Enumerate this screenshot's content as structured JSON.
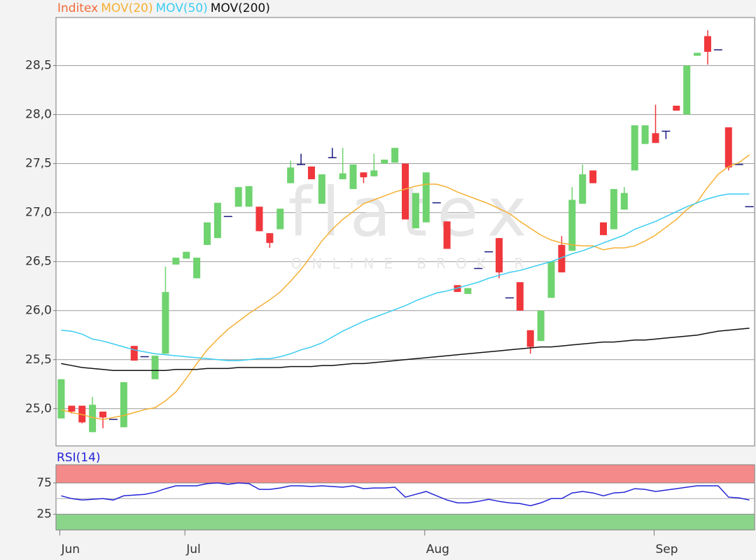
{
  "chart_data": [
    {
      "type": "candlestick",
      "name": "Inditex",
      "name_color": "#f26b3a",
      "up_color": "#6fd36f",
      "down_color": "#f0373c",
      "flat_color": "#1a1a80",
      "categories": [
        "Jun",
        null,
        null,
        null,
        null,
        null,
        null,
        null,
        null,
        null,
        null,
        null,
        "Jul",
        null,
        null,
        null,
        null,
        null,
        null,
        null,
        null,
        null,
        null,
        null,
        null,
        null,
        null,
        null,
        null,
        null,
        null,
        null,
        null,
        null,
        null,
        "Aug",
        null,
        null,
        null,
        null,
        null,
        null,
        null,
        null,
        null,
        null,
        null,
        null,
        null,
        null,
        null,
        null,
        null,
        null,
        null,
        null,
        null,
        "Sep",
        null,
        null,
        null,
        null,
        null,
        null,
        null,
        null,
        null
      ],
      "open": [
        24.9,
        25.03,
        25.03,
        24.76,
        24.97,
        24.89,
        24.81,
        25.64,
        25.53,
        25.3,
        25.56,
        26.47,
        26.53,
        26.33,
        26.67,
        26.74,
        26.96,
        27.06,
        27.06,
        27.06,
        26.79,
        26.83,
        27.3,
        27.49,
        27.47,
        27.09,
        27.56,
        27.34,
        27.24,
        27.41,
        27.37,
        27.5,
        27.51,
        27.5,
        26.84,
        26.9,
        27.1,
        26.91,
        26.26,
        26.17,
        26.43,
        26.6,
        26.74,
        26.13,
        26.29,
        25.8,
        25.69,
        26.13,
        26.67,
        26.61,
        27.09,
        27.43,
        26.9,
        26.83,
        27.03,
        27.43,
        27.7,
        27.81,
        27.83,
        28.09,
        28.0,
        28.6,
        28.8,
        28.66,
        27.87,
        27.49,
        27.06
      ],
      "high": [
        25.3,
        25.03,
        25.03,
        25.12,
        24.97,
        24.89,
        25.27,
        25.64,
        25.53,
        25.54,
        26.45,
        26.54,
        26.6,
        26.54,
        26.9,
        27.1,
        26.96,
        27.26,
        27.27,
        27.06,
        26.79,
        27.04,
        27.53,
        27.6,
        27.47,
        27.39,
        27.66,
        27.66,
        27.49,
        27.41,
        27.6,
        27.54,
        27.66,
        27.5,
        27.2,
        27.41,
        27.1,
        26.91,
        26.26,
        26.23,
        26.43,
        26.6,
        26.74,
        26.13,
        26.29,
        25.8,
        26.0,
        26.5,
        26.76,
        27.26,
        27.49,
        27.43,
        26.9,
        27.24,
        27.26,
        27.89,
        27.89,
        28.1,
        27.83,
        28.09,
        28.5,
        28.63,
        28.86,
        28.66,
        27.87,
        27.49,
        27.06
      ],
      "low": [
        24.9,
        24.95,
        24.85,
        24.76,
        24.8,
        24.89,
        24.81,
        25.49,
        25.53,
        25.3,
        25.56,
        26.47,
        26.53,
        26.33,
        26.67,
        26.74,
        26.96,
        27.06,
        27.06,
        26.81,
        26.64,
        26.83,
        27.3,
        27.49,
        27.34,
        27.09,
        27.56,
        27.34,
        27.24,
        27.3,
        27.37,
        27.5,
        27.51,
        26.93,
        26.84,
        26.9,
        27.1,
        26.63,
        26.19,
        26.17,
        26.43,
        26.6,
        26.33,
        26.13,
        26.0,
        25.56,
        25.69,
        26.13,
        26.39,
        26.61,
        27.09,
        27.3,
        26.77,
        26.83,
        27.03,
        27.43,
        27.7,
        27.71,
        27.75,
        28.04,
        28.0,
        28.6,
        28.51,
        28.66,
        27.43,
        27.49,
        27.06
      ],
      "close": [
        25.3,
        24.97,
        24.86,
        25.04,
        24.91,
        24.89,
        25.27,
        25.49,
        25.53,
        25.54,
        26.19,
        26.54,
        26.6,
        26.54,
        26.9,
        27.1,
        26.96,
        27.26,
        27.27,
        26.81,
        26.69,
        27.04,
        27.46,
        27.49,
        27.34,
        27.39,
        27.56,
        27.4,
        27.49,
        27.36,
        27.43,
        27.54,
        27.66,
        26.93,
        27.2,
        27.41,
        27.1,
        26.63,
        26.19,
        26.23,
        26.43,
        26.6,
        26.39,
        26.13,
        26.0,
        25.63,
        26.0,
        26.5,
        26.39,
        27.13,
        27.39,
        27.3,
        26.77,
        27.24,
        27.2,
        27.89,
        27.89,
        27.71,
        27.83,
        28.04,
        28.5,
        28.63,
        28.64,
        28.66,
        27.46,
        27.49,
        27.06
      ],
      "series": [
        {
          "name": "MOV(20)",
          "color": "#f5b034",
          "values": [
            24.99,
            24.96,
            24.94,
            24.91,
            24.89,
            24.91,
            24.93,
            24.96,
            24.99,
            25.01,
            25.08,
            25.17,
            25.31,
            25.46,
            25.6,
            25.71,
            25.81,
            25.89,
            25.97,
            26.04,
            26.11,
            26.19,
            26.3,
            26.42,
            26.56,
            26.71,
            26.83,
            26.93,
            27.01,
            27.09,
            27.13,
            27.17,
            27.21,
            27.24,
            27.27,
            27.29,
            27.29,
            27.26,
            27.21,
            27.17,
            27.13,
            27.09,
            27.04,
            26.99,
            26.91,
            26.84,
            26.77,
            26.72,
            26.69,
            26.67,
            26.66,
            26.66,
            26.62,
            26.64,
            26.64,
            26.66,
            26.71,
            26.77,
            26.85,
            26.93,
            27.03,
            27.11,
            27.26,
            27.39,
            27.47,
            27.51,
            27.59
          ]
        },
        {
          "name": "MOV(50)",
          "color": "#3ccdf2",
          "values": [
            25.8,
            25.79,
            25.76,
            25.71,
            25.69,
            25.66,
            25.63,
            25.6,
            25.58,
            25.56,
            25.55,
            25.54,
            25.53,
            25.52,
            25.51,
            25.5,
            25.49,
            25.49,
            25.5,
            25.51,
            25.51,
            25.53,
            25.56,
            25.6,
            25.63,
            25.67,
            25.73,
            25.79,
            25.84,
            25.89,
            25.93,
            25.97,
            26.01,
            26.05,
            26.1,
            26.14,
            26.18,
            26.2,
            26.23,
            26.26,
            26.29,
            26.33,
            26.36,
            26.39,
            26.41,
            26.44,
            26.47,
            26.5,
            26.54,
            26.58,
            26.61,
            26.65,
            26.69,
            26.73,
            26.77,
            26.83,
            26.87,
            26.91,
            26.96,
            27.01,
            27.06,
            27.1,
            27.14,
            27.17,
            27.19,
            27.19,
            27.19
          ]
        },
        {
          "name": "MOV(200)",
          "color": "#111111",
          "values": [
            25.46,
            25.44,
            25.42,
            25.41,
            25.4,
            25.39,
            25.39,
            25.39,
            25.39,
            25.39,
            25.39,
            25.4,
            25.4,
            25.4,
            25.41,
            25.41,
            25.41,
            25.42,
            25.42,
            25.42,
            25.42,
            25.42,
            25.43,
            25.43,
            25.43,
            25.44,
            25.44,
            25.45,
            25.46,
            25.46,
            25.47,
            25.48,
            25.49,
            25.5,
            25.51,
            25.52,
            25.53,
            25.54,
            25.55,
            25.56,
            25.57,
            25.58,
            25.59,
            25.6,
            25.61,
            25.62,
            25.63,
            25.63,
            25.64,
            25.65,
            25.66,
            25.67,
            25.68,
            25.68,
            25.69,
            25.7,
            25.7,
            25.71,
            25.72,
            25.73,
            25.74,
            25.75,
            25.77,
            25.79,
            25.8,
            25.81,
            25.82
          ]
        }
      ],
      "ylim": [
        24.62,
        28.99
      ],
      "yticks": [
        {
          "value": 25.0,
          "label": "25,0"
        },
        {
          "value": 25.5,
          "label": "25,5"
        },
        {
          "value": 26.0,
          "label": "26,0"
        },
        {
          "value": 26.5,
          "label": "26,5"
        },
        {
          "value": 27.0,
          "label": "27,0"
        },
        {
          "value": 27.5,
          "label": "27,5"
        },
        {
          "value": 28.0,
          "label": "28,0"
        },
        {
          "value": 28.5,
          "label": "28,5"
        }
      ],
      "grid": true,
      "watermark": {
        "title": "flatex",
        "subtitle": "ONLINE BROKER"
      }
    },
    {
      "type": "line",
      "series": [
        {
          "name": "RSI(14)",
          "color": "#2525d8",
          "values": [
            54.5,
            50,
            47.7,
            48.9,
            50,
            47.7,
            54.5,
            55.7,
            56.8,
            60.2,
            65.9,
            70.5,
            70.5,
            70.5,
            73.9,
            75,
            72.7,
            75,
            73.9,
            64.8,
            64.8,
            67,
            70.5,
            70.5,
            69.3,
            70.5,
            69.3,
            68.2,
            70.5,
            65.9,
            67,
            67,
            68.2,
            52.3,
            56.8,
            61.4,
            54.5,
            47.7,
            43.2,
            43.2,
            45.5,
            48.9,
            45.5,
            43.2,
            42,
            38.6,
            43.2,
            50,
            50,
            59.1,
            61.4,
            59.1,
            54.5,
            59.1,
            60.2,
            65.9,
            64.8,
            61.4,
            63.6,
            65.9,
            68.2,
            70.5,
            70.5,
            70.5,
            52.3,
            51.1,
            47.7
          ]
        }
      ],
      "ylim": [
        0,
        104
      ],
      "yticks": [
        25,
        75
      ],
      "midline": 50,
      "upper_band_color": "#f58a8a",
      "lower_band_color": "#8ad58a"
    }
  ]
}
